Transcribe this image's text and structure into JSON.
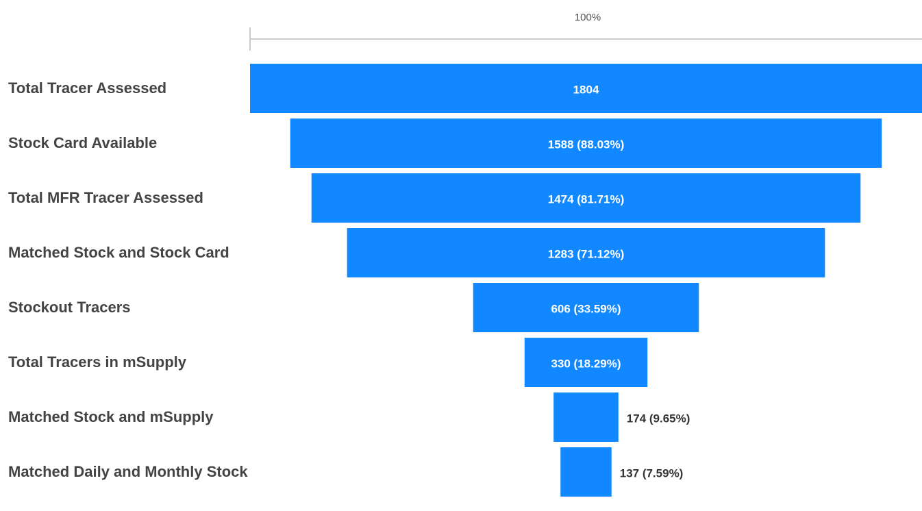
{
  "chart_data": {
    "type": "funnel",
    "axis_label": "100%",
    "color": "#1188ff",
    "categories": [
      "Total Tracer Assessed",
      "Stock Card Available",
      "Total MFR Tracer Assessed",
      "Matched Stock and Stock Card",
      "Stockout Tracers",
      "Total Tracers in mSupply",
      "Matched Stock and mSupply",
      "Matched Daily and Monthly Stock"
    ],
    "values": [
      1804,
      1588,
      1474,
      1283,
      606,
      330,
      174,
      137
    ],
    "value_labels": [
      "1804",
      "1588 (88.03%)",
      "1474 (81.71%)",
      "1283 (71.12%)",
      "606 (33.59%)",
      "330 (18.29%)",
      "174 (9.65%)",
      "137 (7.59%)"
    ]
  }
}
